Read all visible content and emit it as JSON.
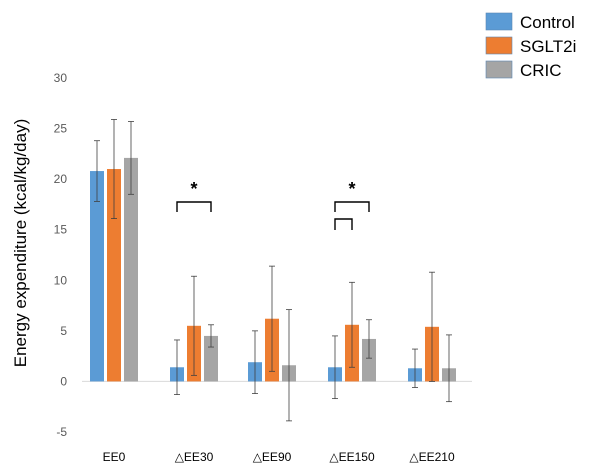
{
  "chart_data": {
    "type": "bar",
    "ylabel": "Energy expenditure (kcal/kg/day)",
    "xlabel": "",
    "ylim": [
      -5,
      30
    ],
    "yticks": [
      -5,
      0,
      5,
      10,
      15,
      20,
      25,
      30
    ],
    "grid": false,
    "legend_position": "top-right",
    "categories": [
      "EE0",
      "△EE30",
      "△EE90",
      "△EE150",
      "△EE210"
    ],
    "series": [
      {
        "name": "Control",
        "color": "#5b9bd5",
        "values": [
          20.8,
          1.4,
          1.9,
          1.4,
          1.3
        ],
        "errors": [
          3.0,
          2.7,
          3.1,
          3.1,
          1.9
        ]
      },
      {
        "name": "SGLT2i",
        "color": "#ed7d31",
        "values": [
          21.0,
          5.5,
          6.2,
          5.6,
          5.4
        ],
        "errors": [
          4.9,
          4.9,
          5.2,
          4.2,
          5.4
        ]
      },
      {
        "name": "CRIC",
        "color": "#a5a5a5",
        "values": [
          22.1,
          4.5,
          1.6,
          4.2,
          1.3
        ],
        "errors": [
          3.6,
          1.1,
          5.5,
          1.9,
          3.3
        ]
      }
    ],
    "annotations": [
      {
        "category": "△EE30",
        "text": "*",
        "bracket": "Control–CRIC"
      },
      {
        "category": "△EE150",
        "text": "*",
        "bracket": "Control–CRIC"
      },
      {
        "category": "△EE150",
        "text": "",
        "bracket": "Control–SGLT2i"
      }
    ]
  }
}
